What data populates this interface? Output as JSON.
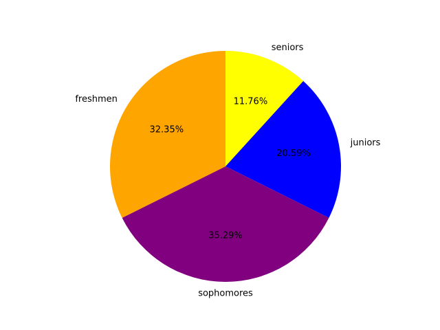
{
  "chart_data": {
    "type": "pie",
    "categories": [
      "seniors",
      "juniors",
      "sophomores",
      "freshmen"
    ],
    "values": [
      11.76,
      20.59,
      35.29,
      32.35
    ],
    "percent_labels": [
      "11.76%",
      "20.59%",
      "35.29%",
      "32.35%"
    ],
    "colors": [
      "#ffff00",
      "#0000ff",
      "#800080",
      "#ffa500"
    ],
    "start_angle_deg": 90,
    "direction": "clockwise"
  }
}
